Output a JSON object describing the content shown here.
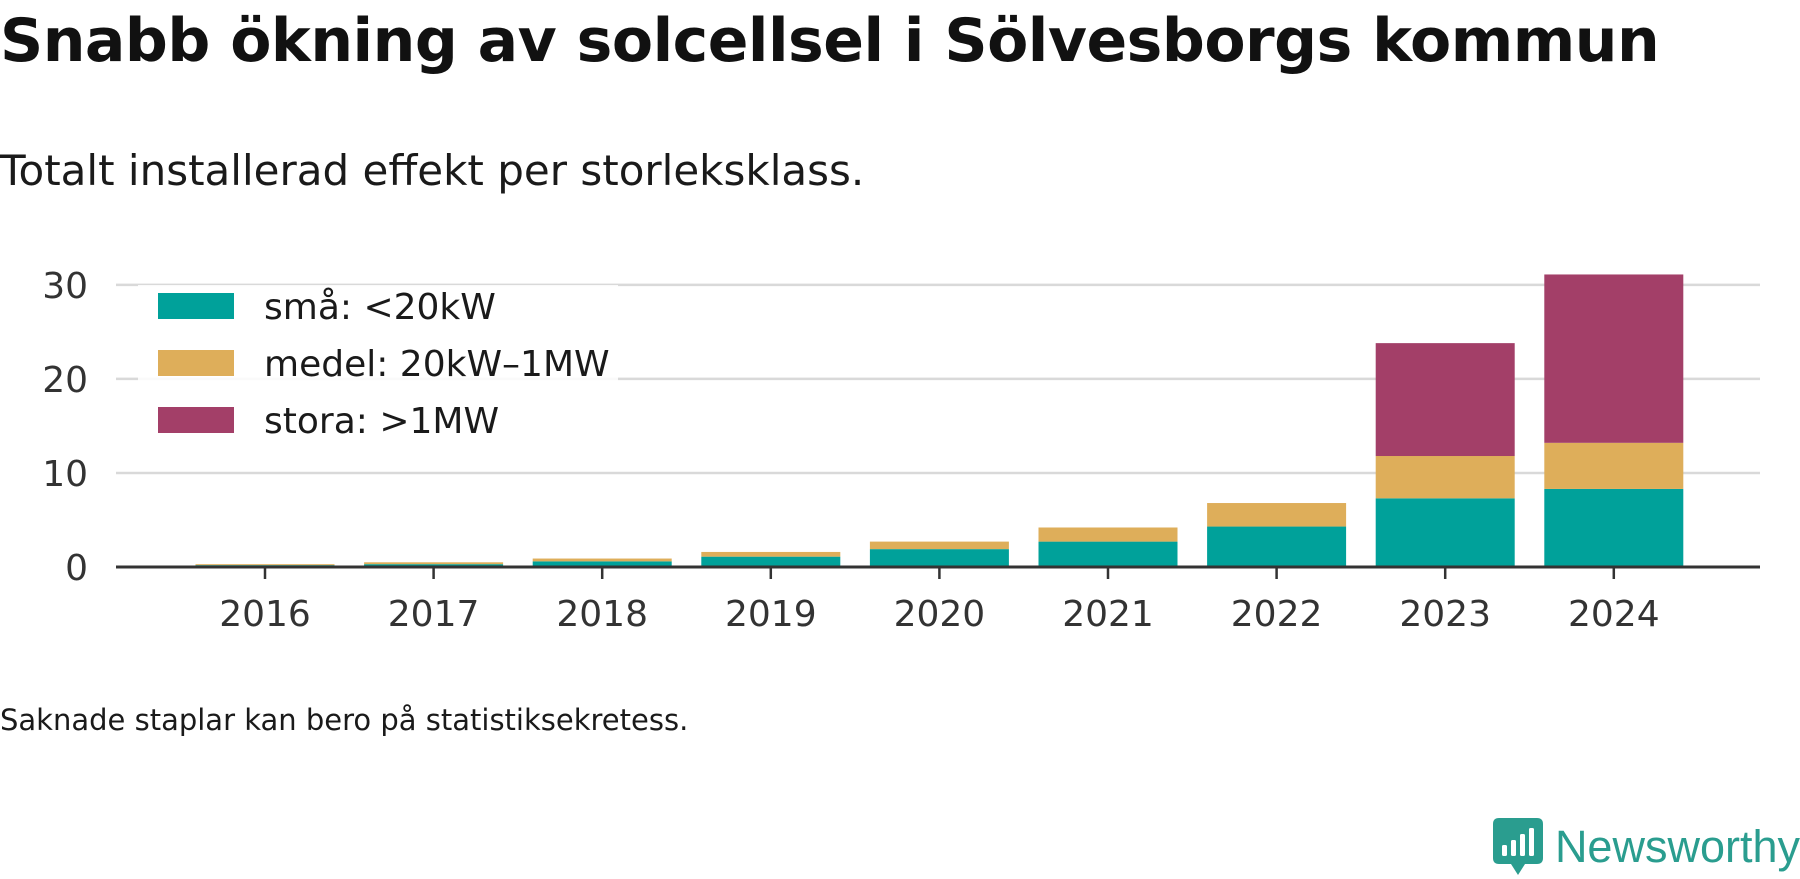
{
  "title": "Snabb ökning av solcellsel i Sölvesborgs kommun",
  "subtitle": "Totalt installerad effekt per storleksklass.",
  "note": "Saknade staplar kan bero på statistiksekretess.",
  "brand": "Newsworthy",
  "colors": {
    "small": "#00a19a",
    "medium": "#deae5a",
    "large": "#a33f68",
    "grid": "#d9d9d9",
    "axis": "#333333",
    "brand": "#2a9d8f"
  },
  "chart_data": {
    "type": "bar",
    "stacked": true,
    "categories": [
      "2016",
      "2017",
      "2018",
      "2019",
      "2020",
      "2021",
      "2022",
      "2023",
      "2024"
    ],
    "series": [
      {
        "name": "små: <20kW",
        "color": "#00a19a",
        "values": [
          0.2,
          0.3,
          0.6,
          1.1,
          1.9,
          2.7,
          4.3,
          7.3,
          8.3
        ]
      },
      {
        "name": "medel: 20kW–1MW",
        "color": "#deae5a",
        "values": [
          0.1,
          0.2,
          0.3,
          0.5,
          0.8,
          1.5,
          2.5,
          4.5,
          4.9
        ]
      },
      {
        "name": "stora: >1MW",
        "color": "#a33f68",
        "values": [
          0,
          0,
          0,
          0,
          0,
          0,
          0,
          12.0,
          17.9
        ]
      }
    ],
    "yticks": [
      0,
      10,
      20,
      30
    ],
    "ylim": [
      0,
      32
    ],
    "grid": true,
    "legend": "top-left"
  }
}
